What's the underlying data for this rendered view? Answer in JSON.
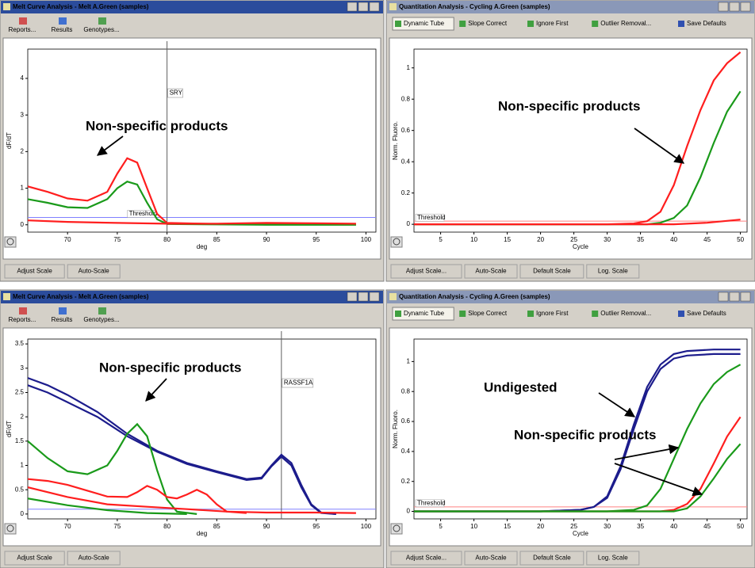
{
  "windows": [
    {
      "kind": "melt",
      "title": "Melt Curve Analysis - Melt A.Green (samples)",
      "toolbar": [
        "Reports...",
        "Results",
        "Genotypes..."
      ],
      "bottom_buttons": [
        "Adjust Scale",
        "Auto-Scale"
      ],
      "chart": {
        "type": "line",
        "x_label": "deg",
        "y_label": "dF/dT",
        "xlim": [
          66,
          101
        ],
        "xticks": [
          70,
          75,
          80,
          85,
          90,
          95,
          100
        ],
        "ylim": [
          -0.2,
          4.8
        ],
        "yticks": [
          0,
          1,
          2,
          3,
          4
        ],
        "threshold": 0.2,
        "threshold_label": "Threshold",
        "marker": {
          "x": 80,
          "label": "SRY"
        },
        "annotations": [
          "Non-specific products"
        ],
        "series": [
          {
            "color": "#ff1e1e",
            "x": [
              66,
              68,
              70,
              72,
              74,
              75,
              76,
              77,
              78,
              79,
              80,
              85,
              90,
              95,
              99
            ],
            "values": [
              1.05,
              0.9,
              0.72,
              0.66,
              0.9,
              1.4,
              1.82,
              1.7,
              1.0,
              0.3,
              0.05,
              0.02,
              0.01,
              0.01,
              0.01
            ]
          },
          {
            "color": "#1a9a1a",
            "x": [
              66,
              68,
              70,
              72,
              74,
              75,
              76,
              77,
              78,
              79,
              80,
              85,
              90,
              95,
              99
            ],
            "values": [
              0.7,
              0.6,
              0.48,
              0.46,
              0.7,
              1.0,
              1.18,
              1.1,
              0.6,
              0.15,
              0.02,
              0.01,
              0,
              0,
              0
            ]
          },
          {
            "color": "#ff1e1e",
            "x": [
              66,
              70,
              75,
              80,
              85,
              90,
              95,
              99
            ],
            "values": [
              0.12,
              0.08,
              0.05,
              0.03,
              0.03,
              0.05,
              0.04,
              0.03
            ]
          }
        ]
      }
    },
    {
      "kind": "quant",
      "title": "Quantitation Analysis - Cycling A.Green (samples)",
      "toolbar": [
        "Dynamic Tube",
        "Slope Correct",
        "Ignore First",
        "Outlier Removal...",
        "Save Defaults"
      ],
      "bottom_buttons": [
        "Adjust Scale...",
        "Auto-Scale",
        "Default Scale",
        "Log. Scale"
      ],
      "chart": {
        "type": "line",
        "x_label": "Cycle",
        "y_label": "Norm. Fluoro.",
        "xlim": [
          1,
          51
        ],
        "xticks": [
          5,
          10,
          15,
          20,
          25,
          30,
          35,
          40,
          45,
          50
        ],
        "ylim": [
          -0.05,
          1.12
        ],
        "yticks": [
          0,
          0.2,
          0.4,
          0.6,
          0.8,
          1
        ],
        "threshold": 0.02,
        "threshold_label": "Threshold",
        "annotations": [
          "Non-specific products"
        ],
        "series": [
          {
            "color": "#ff1e1e",
            "x": [
              1,
              10,
              20,
              30,
              34,
              36,
              38,
              40,
              42,
              44,
              46,
              48,
              50
            ],
            "values": [
              0,
              0,
              0,
              0,
              0.005,
              0.02,
              0.08,
              0.25,
              0.5,
              0.73,
              0.92,
              1.03,
              1.1
            ]
          },
          {
            "color": "#1a9a1a",
            "x": [
              1,
              10,
              20,
              30,
              36,
              38,
              40,
              42,
              44,
              46,
              48,
              50
            ],
            "values": [
              0,
              0,
              0,
              0,
              0,
              0.01,
              0.04,
              0.12,
              0.3,
              0.52,
              0.72,
              0.85
            ]
          },
          {
            "color": "#ff1e1e",
            "x": [
              1,
              20,
              40,
              45,
              50
            ],
            "values": [
              0,
              0,
              0,
              0.01,
              0.03
            ]
          }
        ]
      }
    },
    {
      "kind": "melt",
      "title": "Melt Curve Analysis - Melt A.Green (samples)",
      "toolbar": [
        "Reports...",
        "Results",
        "Genotypes..."
      ],
      "bottom_buttons": [
        "Adjust Scale",
        "Auto-Scale"
      ],
      "chart": {
        "type": "line",
        "x_label": "deg",
        "y_label": "dF/dT",
        "xlim": [
          66,
          101
        ],
        "xticks": [
          70,
          75,
          80,
          85,
          90,
          95,
          100
        ],
        "ylim": [
          -0.1,
          3.6
        ],
        "yticks": [
          0,
          0.5,
          1,
          1.5,
          2,
          2.5,
          3,
          3.5
        ],
        "threshold": 0.1,
        "threshold_label": "",
        "marker": {
          "x": 91.5,
          "label": "RASSF1A"
        },
        "annotations": [
          "Non-specific products"
        ],
        "series": [
          {
            "color": "#1c1c8c",
            "x": [
              66,
              68,
              70,
              73,
              76,
              79,
              82,
              85,
              88,
              89.5,
              90.5,
              91.5,
              92.5,
              93.5,
              94.5,
              95.5,
              97
            ],
            "values": [
              2.8,
              2.65,
              2.45,
              2.1,
              1.65,
              1.3,
              1.05,
              0.88,
              0.72,
              0.75,
              1.0,
              1.22,
              1.05,
              0.6,
              0.2,
              0.03,
              0
            ]
          },
          {
            "color": "#1c1c8c",
            "x": [
              66,
              68,
              70,
              73,
              76,
              79,
              82,
              85,
              88,
              89.5,
              90.5,
              91.5,
              92.5,
              93.5,
              94.5,
              95.5,
              97
            ],
            "values": [
              2.65,
              2.5,
              2.3,
              2.0,
              1.6,
              1.28,
              1.03,
              0.86,
              0.7,
              0.73,
              0.98,
              1.18,
              1.0,
              0.55,
              0.18,
              0.02,
              0
            ]
          },
          {
            "color": "#1a9a1a",
            "x": [
              66,
              68,
              70,
              72,
              74,
              75,
              76,
              77,
              78,
              79,
              80,
              81,
              83
            ],
            "values": [
              1.5,
              1.15,
              0.88,
              0.82,
              1.0,
              1.3,
              1.65,
              1.85,
              1.6,
              0.9,
              0.3,
              0.05,
              0
            ]
          },
          {
            "color": "#ff1e1e",
            "x": [
              66,
              68,
              70,
              72,
              74,
              76,
              77,
              78,
              79,
              80,
              81,
              82,
              83,
              84,
              85,
              86,
              88
            ],
            "values": [
              0.72,
              0.68,
              0.6,
              0.48,
              0.36,
              0.35,
              0.45,
              0.58,
              0.5,
              0.35,
              0.32,
              0.4,
              0.5,
              0.4,
              0.2,
              0.05,
              0.02
            ]
          },
          {
            "color": "#ff1e1e",
            "x": [
              66,
              70,
              74,
              78,
              82,
              86,
              90,
              95,
              99
            ],
            "values": [
              0.55,
              0.35,
              0.2,
              0.15,
              0.1,
              0.05,
              0.03,
              0.03,
              0.02
            ]
          },
          {
            "color": "#1a9a1a",
            "x": [
              66,
              70,
              74,
              78,
              82
            ],
            "values": [
              0.32,
              0.18,
              0.08,
              0.02,
              0
            ]
          }
        ]
      }
    },
    {
      "kind": "quant",
      "title": "Quantitation Analysis - Cycling A.Green (samples)",
      "toolbar": [
        "Dynamic Tube",
        "Slope Correct",
        "Ignore First",
        "Outlier Removal...",
        "Save Defaults"
      ],
      "bottom_buttons": [
        "Adjust Scale...",
        "Auto-Scale",
        "Default Scale",
        "Log. Scale"
      ],
      "chart": {
        "type": "line",
        "x_label": "Cycle",
        "y_label": "Norm. Fluoro.",
        "xlim": [
          1,
          51
        ],
        "xticks": [
          5,
          10,
          15,
          20,
          25,
          30,
          35,
          40,
          45,
          50
        ],
        "ylim": [
          -0.05,
          1.15
        ],
        "yticks": [
          0,
          0.2,
          0.4,
          0.6,
          0.8,
          1
        ],
        "threshold": 0.03,
        "threshold_label": "Threshold",
        "annotations": [
          "Undigested",
          "Non-specific products"
        ],
        "series": [
          {
            "color": "#1c1c8c",
            "x": [
              1,
              10,
              20,
              26,
              28,
              30,
              32,
              34,
              36,
              38,
              40,
              42,
              46,
              50
            ],
            "values": [
              0,
              0,
              0,
              0.01,
              0.03,
              0.1,
              0.3,
              0.58,
              0.83,
              0.98,
              1.05,
              1.07,
              1.08,
              1.08
            ]
          },
          {
            "color": "#1c1c8c",
            "x": [
              1,
              10,
              20,
              26,
              28,
              30,
              32,
              34,
              36,
              38,
              40,
              42,
              46,
              50
            ],
            "values": [
              0,
              0,
              0,
              0.01,
              0.03,
              0.09,
              0.28,
              0.55,
              0.8,
              0.95,
              1.02,
              1.04,
              1.05,
              1.05
            ]
          },
          {
            "color": "#1a9a1a",
            "x": [
              1,
              10,
              20,
              30,
              34,
              36,
              38,
              40,
              42,
              44,
              46,
              48,
              50
            ],
            "values": [
              0,
              0,
              0,
              0,
              0.01,
              0.04,
              0.15,
              0.35,
              0.55,
              0.72,
              0.85,
              0.93,
              0.98
            ]
          },
          {
            "color": "#ff1e1e",
            "x": [
              1,
              20,
              38,
              40,
              42,
              44,
              46,
              48,
              50
            ],
            "values": [
              0,
              0,
              0,
              0.01,
              0.05,
              0.15,
              0.32,
              0.5,
              0.63
            ]
          },
          {
            "color": "#1a9a1a",
            "x": [
              1,
              20,
              40,
              42,
              44,
              46,
              48,
              50
            ],
            "values": [
              0,
              0,
              0,
              0.02,
              0.1,
              0.22,
              0.35,
              0.45
            ]
          }
        ]
      }
    }
  ]
}
